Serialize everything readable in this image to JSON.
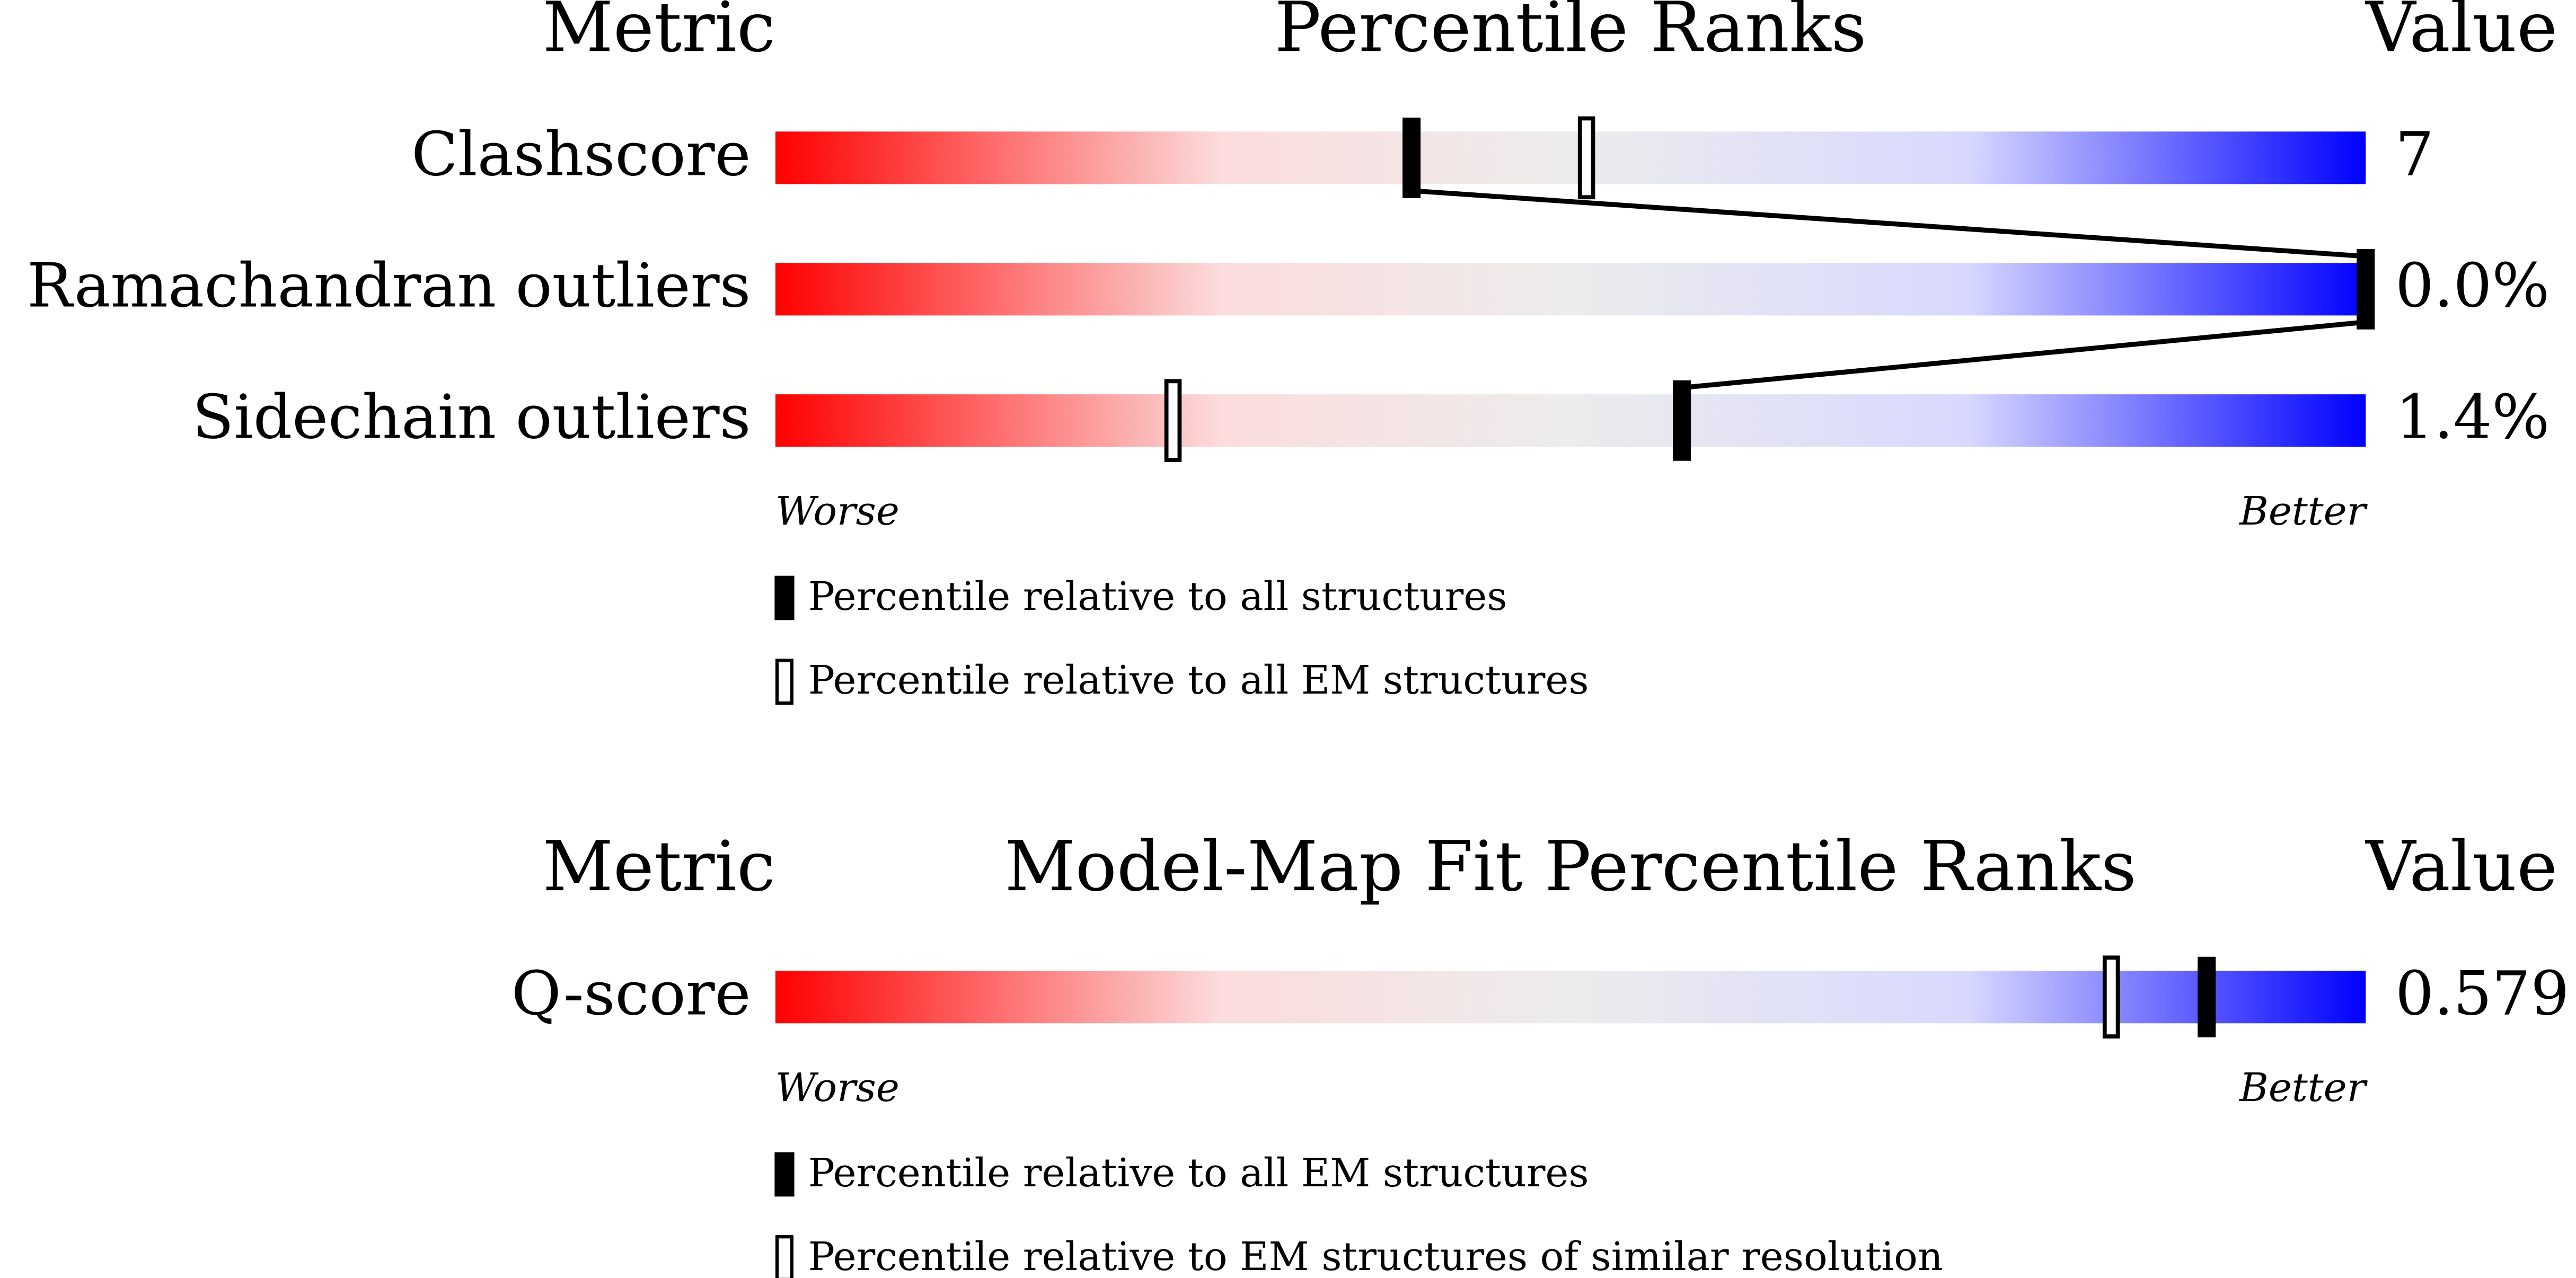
{
  "chart_data": [
    {
      "type": "slider",
      "metric_label": "Metric",
      "title": "Percentile Ranks",
      "value_label": "Value",
      "categories": [
        "Clashscore",
        "Ramachandran outliers",
        "Sidechain outliers"
      ],
      "metric_values": [
        "7",
        "0.0%",
        "1.4%"
      ],
      "series": [
        {
          "name": "Percentile relative to all structures",
          "color": "#000000",
          "values": [
            40,
            100,
            57
          ]
        },
        {
          "name": "Percentile relative to all EM structures",
          "color": "#ffffff",
          "values": [
            51,
            null,
            25
          ]
        }
      ],
      "xlim": [
        0,
        100
      ],
      "worse_label": "Worse",
      "better_label": "Better"
    },
    {
      "type": "slider",
      "metric_label": "Metric",
      "title": "Model-Map Fit Percentile Ranks",
      "value_label": "Value",
      "categories": [
        "Q-score"
      ],
      "metric_values": [
        "0.579"
      ],
      "series": [
        {
          "name": "Percentile relative to all EM structures",
          "color": "#000000",
          "values": [
            90
          ]
        },
        {
          "name": "Percentile relative to EM structures of similar resolution",
          "color": "#ffffff",
          "values": [
            84
          ]
        }
      ],
      "xlim": [
        0,
        100
      ],
      "worse_label": "Worse",
      "better_label": "Better"
    }
  ]
}
